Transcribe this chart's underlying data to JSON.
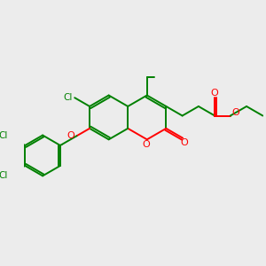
{
  "bg_color": "#ececec",
  "bond_color": "#008000",
  "heteroatom_color": "#ff0000",
  "cl_color": "#008000",
  "line_width": 1.4,
  "figsize": [
    3.0,
    3.0
  ],
  "dpi": 100,
  "xlim": [
    0,
    10
  ],
  "ylim": [
    0,
    10
  ]
}
